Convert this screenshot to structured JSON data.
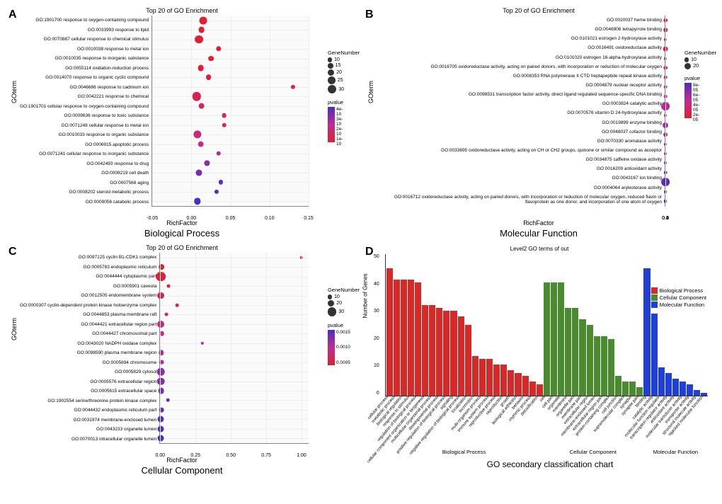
{
  "panels": {
    "A": {
      "letter": "A",
      "title": "Top 20 of GO Enrichment",
      "ylabel": "GOterm",
      "xlabel": "RichFactor",
      "sublabel": "Biological Process",
      "xlim": [
        -0.05,
        0.15
      ],
      "xticks": [
        "-0.05",
        "0.00",
        "0.05",
        "0.10",
        "0.15"
      ],
      "gene_legend": {
        "title": "GeneNumber",
        "sizes": [
          10,
          15,
          20,
          25,
          30
        ]
      },
      "pvalue_legend": {
        "title": "pvalue",
        "ticks": [
          "4e-10",
          "3e-10",
          "2e-10",
          "1e-10"
        ],
        "gradient": [
          "#4b2cc4",
          "#c02d8f",
          "#e01f30"
        ]
      },
      "terms": [
        {
          "label": "GO:1901700 response to oxygen-containing compound",
          "rf": 0.015,
          "gn": 25,
          "pv": 1
        },
        {
          "label": "GO:0033993 response to lipid",
          "rf": 0.013,
          "gn": 18,
          "pv": 1
        },
        {
          "label": "GO:0070887 cellular response to chemical stimulus",
          "rf": 0.01,
          "gn": 28,
          "pv": 1
        },
        {
          "label": "GO:0010038 response to metal ion",
          "rf": 0.035,
          "gn": 14,
          "pv": 1
        },
        {
          "label": "GO:0010035 response to inorganic substance",
          "rf": 0.025,
          "gn": 15,
          "pv": 1
        },
        {
          "label": "GO:0055114 oxidation-reduction process",
          "rf": 0.012,
          "gn": 18,
          "pv": 1
        },
        {
          "label": "GO:0014070 response to organic cyclic compound",
          "rf": 0.022,
          "gn": 15,
          "pv": 0.95
        },
        {
          "label": "GO:0046686 response to cadmium ion",
          "rf": 0.13,
          "gn": 10,
          "pv": 0.9
        },
        {
          "label": "GO:0042221 response to chemical",
          "rf": 0.007,
          "gn": 30,
          "pv": 0.85
        },
        {
          "label": "GO:1901701 cellular response to oxygen-containing compound",
          "rf": 0.013,
          "gn": 18,
          "pv": 0.8
        },
        {
          "label": "GO:0009636 response to toxic substance",
          "rf": 0.042,
          "gn": 12,
          "pv": 0.75
        },
        {
          "label": "GO:0071248 cellular response to metal ion",
          "rf": 0.042,
          "gn": 11,
          "pv": 0.7
        },
        {
          "label": "GO:0010033 response to organic substance",
          "rf": 0.008,
          "gn": 26,
          "pv": 0.6
        },
        {
          "label": "GO:0006915 apoptotic process",
          "rf": 0.012,
          "gn": 18,
          "pv": 0.5
        },
        {
          "label": "GO:0071241 cellular response to inorganic substance",
          "rf": 0.035,
          "gn": 11,
          "pv": 0.4
        },
        {
          "label": "GO:0042493 response to drug",
          "rf": 0.02,
          "gn": 13,
          "pv": 0.3
        },
        {
          "label": "GO:0008219 cell death",
          "rf": 0.01,
          "gn": 19,
          "pv": 0.2
        },
        {
          "label": "GO:0007568 aging",
          "rf": 0.038,
          "gn": 10,
          "pv": 0.1
        },
        {
          "label": "GO:0008202 steroid metabolic process",
          "rf": 0.032,
          "gn": 10,
          "pv": 0.05
        },
        {
          "label": "GO:0009056 catabolic process",
          "rf": 0.008,
          "gn": 20,
          "pv": 0.0
        }
      ]
    },
    "B": {
      "letter": "B",
      "title": "Top 20 of GO Enrichment",
      "ylabel": "GOterm",
      "xlabel": "RichFactor",
      "sublabel": "Molecular Function",
      "xlim": [
        0.0,
        0.7
      ],
      "xticks": [
        "0.0",
        "0.2",
        "0.4",
        "0.6"
      ],
      "gene_legend": {
        "title": "GeneNumber",
        "sizes": [
          10,
          20
        ]
      },
      "pvalue_legend": {
        "title": "pvalue",
        "ticks": [
          "8e-05",
          "6e-05",
          "4e-05",
          "2e-05"
        ],
        "gradient": [
          "#4b2cc4",
          "#c02d8f",
          "#e01f30"
        ]
      },
      "terms": [
        {
          "label": "GO:0020037 heme binding",
          "rf": 0.04,
          "gn": 8,
          "pv": 1
        },
        {
          "label": "GO:0046906 tetrapyrrole binding",
          "rf": 0.035,
          "gn": 8,
          "pv": 1
        },
        {
          "label": "GO:0101021 estrogen 2-hydroxylase activity",
          "rf": 0.5,
          "gn": 4,
          "pv": 0.95
        },
        {
          "label": "GO:0016491 oxidoreductase activity",
          "rf": 0.015,
          "gn": 12,
          "pv": 0.9
        },
        {
          "label": "GO:0101020 estrogen 16-alpha-hydroxylase activity",
          "rf": 0.4,
          "gn": 4,
          "pv": 0.85
        },
        {
          "label": "GO:0016705 oxidoreductase activity, acting on paired donors, with incorporation or reduction of molecular oxygen",
          "rf": 0.03,
          "gn": 8,
          "pv": 0.8
        },
        {
          "label": "GO:0008353 RNA polymerase II CTD heptapeptide repeat kinase activity",
          "rf": 0.13,
          "gn": 5,
          "pv": 0.65
        },
        {
          "label": "GO:0004879 nuclear receptor activity",
          "rf": 0.1,
          "gn": 5,
          "pv": 0.55
        },
        {
          "label": "GO:0098531 transcription factor activity, direct ligand regulated sequence-specific DNA binding",
          "rf": 0.1,
          "gn": 5,
          "pv": 0.5
        },
        {
          "label": "GO:0003824 catalytic activity",
          "rf": 0.005,
          "gn": 28,
          "pv": 0.45
        },
        {
          "label": "GO:0070576 vitamin D 24-hydroxylase activity",
          "rf": 0.67,
          "gn": 3,
          "pv": 0.45
        },
        {
          "label": "GO:0019899 enzyme binding",
          "rf": 0.008,
          "gn": 16,
          "pv": 0.4
        },
        {
          "label": "GO:0048037 cofactor binding",
          "rf": 0.018,
          "gn": 9,
          "pv": 0.35
        },
        {
          "label": "GO:0070330 aromatase activity",
          "rf": 0.12,
          "gn": 4,
          "pv": 0.3
        },
        {
          "label": "GO:0033695 oxidoreductase activity, acting on CH or CH2 groups, quinone or similar compound as acceptor",
          "rf": 0.5,
          "gn": 3,
          "pv": 0.25
        },
        {
          "label": "GO:0034875 caffeine oxidase activity",
          "rf": 0.5,
          "gn": 3,
          "pv": 0.2
        },
        {
          "label": "GO:0016209 antioxidant activity",
          "rf": 0.06,
          "gn": 5,
          "pv": 0.15
        },
        {
          "label": "GO:0043167 ion binding",
          "rf": 0.004,
          "gn": 28,
          "pv": 0.05
        },
        {
          "label": "GO:0004064 arylesterase activity",
          "rf": 0.4,
          "gn": 3,
          "pv": 0.02
        },
        {
          "label": "GO:0016712 oxidoreductase activity, acting on paired donors, with incorporation or reduction of molecular oxygen, reduced flavin or flavoprotein as one donor, and incorporation of one atom of oxygen",
          "rf": 0.12,
          "gn": 4,
          "pv": 0.0
        }
      ]
    },
    "C": {
      "letter": "C",
      "title": "Top 20 of GO Enrichment",
      "ylabel": "GOterm",
      "xlabel": "RichFactor",
      "sublabel": "Cellular Component",
      "xlim": [
        0.0,
        1.05
      ],
      "xticks": [
        "0.00",
        "0.25",
        "0.50",
        "0.75",
        "1.00"
      ],
      "gene_legend": {
        "title": "GeneNumber",
        "sizes": [
          10,
          20,
          30
        ]
      },
      "pvalue_legend": {
        "title": "pvalue",
        "ticks": [
          "0.0015",
          "0.0010",
          "0.0005"
        ],
        "gradient": [
          "#4b2cc4",
          "#c02d8f",
          "#e01f30"
        ]
      },
      "terms": [
        {
          "label": "GO:0097125 cyclin B1-CDK1 complex",
          "rf": 1.0,
          "gn": 4,
          "pv": 1
        },
        {
          "label": "GO:0005783 endoplasmic reticulum",
          "rf": 0.008,
          "gn": 15,
          "pv": 1
        },
        {
          "label": "GO:0044444 cytoplasmic part",
          "rf": 0.004,
          "gn": 34,
          "pv": 0.95
        },
        {
          "label": "GO:0005901 caveola",
          "rf": 0.06,
          "gn": 6,
          "pv": 0.9
        },
        {
          "label": "GO:0012505 endomembrane system",
          "rf": 0.005,
          "gn": 22,
          "pv": 0.85
        },
        {
          "label": "GO:0000307 cyclin-dependent protein kinase holoenzyme complex",
          "rf": 0.12,
          "gn": 5,
          "pv": 0.75
        },
        {
          "label": "GO:0044853 plasma membrane raft",
          "rf": 0.045,
          "gn": 6,
          "pv": 0.7
        },
        {
          "label": "GO:0044421 extracellular region part",
          "rf": 0.005,
          "gn": 22,
          "pv": 0.6
        },
        {
          "label": "GO:0044427 chromosomal part",
          "rf": 0.012,
          "gn": 11,
          "pv": 0.55
        },
        {
          "label": "GO:0043020 NADPH oxidase complex",
          "rf": 0.3,
          "gn": 4,
          "pv": 0.5
        },
        {
          "label": "GO:0098590 plasma membrane region",
          "rf": 0.008,
          "gn": 14,
          "pv": 0.45
        },
        {
          "label": "GO:0005694 chromosome",
          "rf": 0.01,
          "gn": 12,
          "pv": 0.4
        },
        {
          "label": "GO:0005829 cytosol",
          "rf": 0.004,
          "gn": 24,
          "pv": 0.3
        },
        {
          "label": "GO:0005576 extracellular region",
          "rf": 0.004,
          "gn": 24,
          "pv": 0.25
        },
        {
          "label": "GO:0005615 extracellular space",
          "rf": 0.006,
          "gn": 18,
          "pv": 0.2
        },
        {
          "label": "GO:1902554 serine/threonine protein kinase complex",
          "rf": 0.055,
          "gn": 5,
          "pv": 0.15
        },
        {
          "label": "GO:0044432 endoplasmic reticulum part",
          "rf": 0.008,
          "gn": 12,
          "pv": 0.1
        },
        {
          "label": "GO:0031974 membrane-enclosed lumen",
          "rf": 0.005,
          "gn": 19,
          "pv": 0.05
        },
        {
          "label": "GO:0043233 organelle lumen",
          "rf": 0.005,
          "gn": 19,
          "pv": 0.02
        },
        {
          "label": "GO:0070013 intracellular organelle lumen",
          "rf": 0.005,
          "gn": 19,
          "pv": 0.0
        }
      ]
    },
    "D": {
      "letter": "D",
      "title": "Level2 GO terms of out",
      "ylabel": "Number of Genes",
      "sublabel": "GO secondary classification chart",
      "ylim": [
        0,
        50
      ],
      "yticks": [
        "0",
        "10",
        "20",
        "30",
        "40",
        "50"
      ],
      "legend": [
        {
          "label": "Biological Process",
          "color": "#d62a28"
        },
        {
          "label": "Cellular Component",
          "color": "#4a8b2f"
        },
        {
          "label": "Molecular Function",
          "color": "#1f3fd6"
        }
      ],
      "sections": [
        {
          "label": "Biological Process",
          "color": "#d62a28",
          "bars": [
            {
              "label": "cellular process",
              "v": 45
            },
            {
              "label": "metabolic process",
              "v": 41
            },
            {
              "label": "biological regulation",
              "v": 41
            },
            {
              "label": "response to stimulus",
              "v": 41
            },
            {
              "label": "regulation of biological process",
              "v": 40
            },
            {
              "label": "cellular component organization or biogenesis",
              "v": 32
            },
            {
              "label": "multicellular organismal process",
              "v": 32
            },
            {
              "label": "developmental process",
              "v": 31
            },
            {
              "label": "positive regulation of biological process",
              "v": 30
            },
            {
              "label": "signaling",
              "v": 30
            },
            {
              "label": "negative regulation of biological process",
              "v": 28
            },
            {
              "label": "localization",
              "v": 25
            },
            {
              "label": "locomotion",
              "v": 14
            },
            {
              "label": "multi-organism process",
              "v": 13
            },
            {
              "label": "immune system process",
              "v": 13
            },
            {
              "label": "reproductive process",
              "v": 11
            },
            {
              "label": "reproduction",
              "v": 11
            },
            {
              "label": "growth",
              "v": 9
            },
            {
              "label": "biological adhesion",
              "v": 8
            },
            {
              "label": "behavior",
              "v": 7
            },
            {
              "label": "rhythmic process",
              "v": 5
            },
            {
              "label": "detoxification",
              "v": 4
            }
          ]
        },
        {
          "label": "Cellular Component",
          "color": "#4a8b2f",
          "bars": [
            {
              "label": "cell",
              "v": 40
            },
            {
              "label": "cell part",
              "v": 40
            },
            {
              "label": "organelle",
              "v": 40
            },
            {
              "label": "membrane",
              "v": 31
            },
            {
              "label": "organelle part",
              "v": 31
            },
            {
              "label": "membrane part",
              "v": 27
            },
            {
              "label": "extracellular region",
              "v": 25
            },
            {
              "label": "membrane-enclosed lumen",
              "v": 21
            },
            {
              "label": "extracellular region part",
              "v": 21
            },
            {
              "label": "protein-containing complex",
              "v": 20
            },
            {
              "label": "cell junction",
              "v": 7
            },
            {
              "label": "supramolecular complex",
              "v": 5
            },
            {
              "label": "synapse",
              "v": 5
            },
            {
              "label": "synapse part",
              "v": 3
            }
          ]
        },
        {
          "label": "Molecular Function",
          "color": "#1f3fd6",
          "bars": [
            {
              "label": "binding",
              "v": 45
            },
            {
              "label": "catalytic activity",
              "v": 29
            },
            {
              "label": "molecular function regulator",
              "v": 10
            },
            {
              "label": "transcription regulator activity",
              "v": 8
            },
            {
              "label": "antioxidant activity",
              "v": 6
            },
            {
              "label": "molecular transducer activity",
              "v": 5
            },
            {
              "label": "transporter activity",
              "v": 4
            },
            {
              "label": "structural molecule activity",
              "v": 2
            },
            {
              "label": "hijacked molecular function",
              "v": 1
            }
          ]
        }
      ]
    }
  }
}
